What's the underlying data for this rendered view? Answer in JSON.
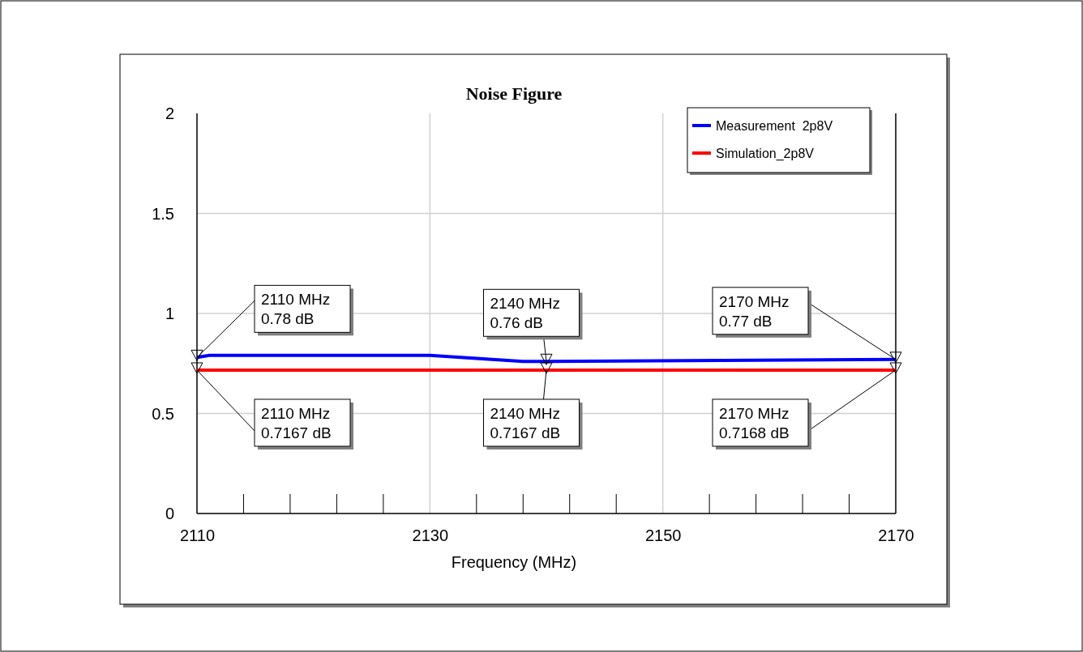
{
  "chart_data": {
    "type": "line",
    "title": "Noise Figure",
    "xlabel": "Frequency (MHz)",
    "series": [
      {
        "name": "Measurement  2p8V",
        "color": "#0000ff",
        "x": [
          2110,
          2111,
          2130,
          2138,
          2140,
          2170
        ],
        "values": [
          0.78,
          0.79,
          0.79,
          0.76,
          0.76,
          0.77
        ]
      },
      {
        "name": "Simulation_2p8V",
        "color": "#ff0000",
        "x": [
          2110,
          2140,
          2170
        ],
        "values": [
          0.7167,
          0.7167,
          0.7168
        ]
      }
    ],
    "xlim": [
      2110,
      2170
    ],
    "xticks": [
      2110,
      2130,
      2150,
      2170
    ],
    "ylim": [
      0,
      2
    ],
    "yticks": [
      0,
      0.5,
      1,
      1.5,
      2
    ],
    "grid": true,
    "legend": "top right",
    "annotations": [
      {
        "text": "2110 MHz\n0.78 dB",
        "x": 2110,
        "y": 0.78
      },
      {
        "text": "2140 MHz\n0.76 dB",
        "x": 2140,
        "y": 0.76
      },
      {
        "text": "2170 MHz\n0.77 dB",
        "x": 2170,
        "y": 0.77
      },
      {
        "text": "2110 MHz\n0.7167 dB",
        "x": 2110,
        "y": 0.7167
      },
      {
        "text": "2140 MHz\n0.7167 dB",
        "x": 2140,
        "y": 0.7167
      },
      {
        "text": "2170 MHz\n0.7168 dB",
        "x": 2170,
        "y": 0.7168
      }
    ]
  }
}
